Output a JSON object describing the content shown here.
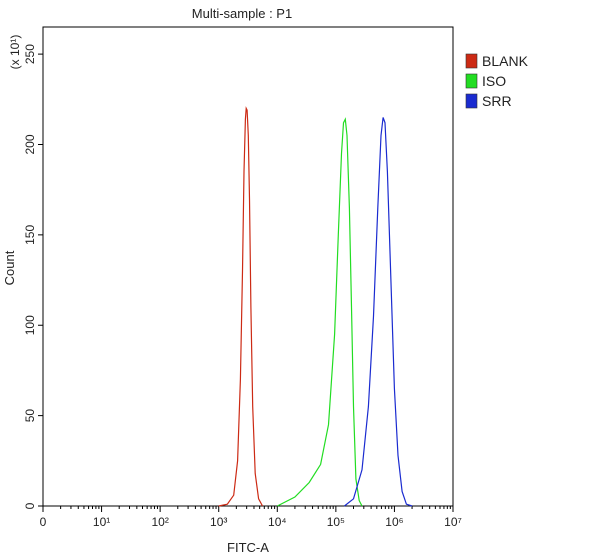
{
  "chart_data": {
    "type": "line",
    "title": "Multi-sample : P1",
    "xlabel": "FITC-A",
    "ylabel": "Count",
    "y_multiplier_label": "(x 10¹)",
    "x_scale": "log",
    "xlim": [
      1,
      10000000
    ],
    "ylim": [
      0,
      265
    ],
    "x_ticks": [
      {
        "value": 1,
        "label": "0"
      },
      {
        "value": 10,
        "label": "10¹"
      },
      {
        "value": 100,
        "label": "10²"
      },
      {
        "value": 1000,
        "label": "10³"
      },
      {
        "value": 10000,
        "label": "10⁴"
      },
      {
        "value": 100000,
        "label": "10⁵"
      },
      {
        "value": 1000000,
        "label": "10⁶"
      },
      {
        "value": 10000000,
        "label": "10⁷"
      }
    ],
    "y_ticks": [
      0,
      50,
      100,
      150,
      200,
      250
    ],
    "legend_position": "top-right",
    "series": [
      {
        "name": "BLANK",
        "color": "#cc2a14",
        "peak_x": 3000,
        "peak_y": 220,
        "points": [
          [
            1000,
            0
          ],
          [
            1400,
            1
          ],
          [
            1800,
            6
          ],
          [
            2100,
            25
          ],
          [
            2350,
            70
          ],
          [
            2550,
            130
          ],
          [
            2700,
            185
          ],
          [
            2850,
            214
          ],
          [
            2950,
            220
          ],
          [
            3050,
            219
          ],
          [
            3200,
            205
          ],
          [
            3350,
            170
          ],
          [
            3550,
            110
          ],
          [
            3800,
            55
          ],
          [
            4200,
            18
          ],
          [
            4800,
            4
          ],
          [
            5600,
            0
          ]
        ]
      },
      {
        "name": "ISO",
        "color": "#22dd22",
        "peak_x": 140000,
        "peak_y": 214,
        "points": [
          [
            10000,
            0
          ],
          [
            20000,
            5
          ],
          [
            35000,
            13
          ],
          [
            55000,
            23
          ],
          [
            75000,
            45
          ],
          [
            95000,
            95
          ],
          [
            110000,
            150
          ],
          [
            125000,
            195
          ],
          [
            135000,
            212
          ],
          [
            145000,
            214
          ],
          [
            155000,
            205
          ],
          [
            170000,
            165
          ],
          [
            185000,
            110
          ],
          [
            200000,
            55
          ],
          [
            220000,
            15
          ],
          [
            250000,
            3
          ],
          [
            280000,
            0
          ]
        ]
      },
      {
        "name": "SRR",
        "color": "#1a2bd0",
        "peak_x": 650000,
        "peak_y": 215,
        "points": [
          [
            140000,
            0
          ],
          [
            200000,
            4
          ],
          [
            280000,
            20
          ],
          [
            360000,
            55
          ],
          [
            440000,
            105
          ],
          [
            520000,
            165
          ],
          [
            590000,
            205
          ],
          [
            640000,
            215
          ],
          [
            690000,
            212
          ],
          [
            760000,
            185
          ],
          [
            880000,
            120
          ],
          [
            1000000,
            65
          ],
          [
            1150000,
            28
          ],
          [
            1350000,
            8
          ],
          [
            1600000,
            1
          ],
          [
            2000000,
            0
          ]
        ]
      }
    ]
  }
}
